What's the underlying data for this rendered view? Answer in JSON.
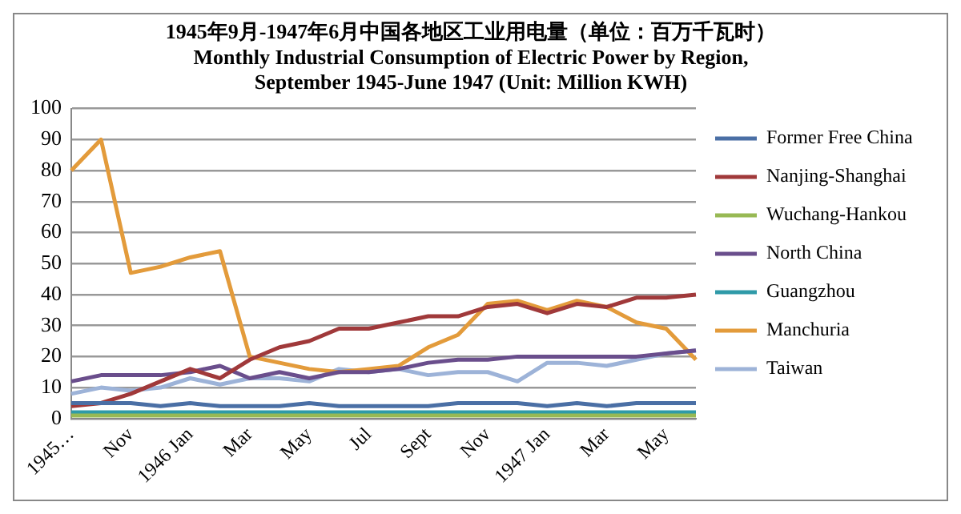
{
  "chart_data": {
    "type": "line",
    "title": "1945年9月-1947年6月中国各地区工业用电量（单位：百万千瓦时）",
    "subtitle": "Monthly Industrial Consumption of Electric Power by Region, September 1945-June 1947 (Unit: Million KWH)",
    "categories": [
      "1945…",
      null,
      "Nov",
      null,
      "1946 Jan",
      null,
      "Mar",
      null,
      "May",
      null,
      "Jul",
      null,
      "Sept",
      null,
      "Nov",
      null,
      "1947 Jan",
      null,
      "Mar",
      null,
      "May",
      null
    ],
    "series": [
      {
        "name": "Former Free China",
        "color": "#4a6fa5",
        "values": [
          5,
          5,
          5,
          4,
          5,
          4,
          4,
          4,
          5,
          4,
          4,
          4,
          4,
          5,
          5,
          5,
          4,
          5,
          4,
          5,
          5,
          5
        ]
      },
      {
        "name": "Nanjing-Shanghai",
        "color": "#a0393a",
        "values": [
          4,
          5,
          8,
          12,
          16,
          13,
          19,
          23,
          25,
          29,
          29,
          31,
          33,
          33,
          36,
          37,
          34,
          37,
          36,
          39,
          39,
          40
        ]
      },
      {
        "name": "Wuchang-Hankou",
        "color": "#98b954",
        "values": [
          1,
          1,
          1,
          1,
          1,
          1,
          1,
          1,
          1,
          1,
          1,
          1,
          1,
          1,
          1,
          1,
          1,
          1,
          1,
          1,
          1,
          1
        ]
      },
      {
        "name": "North China",
        "color": "#6a4e8c",
        "values": [
          12,
          14,
          14,
          14,
          15,
          17,
          13,
          15,
          13,
          15,
          15,
          16,
          18,
          19,
          19,
          20,
          20,
          20,
          20,
          20,
          21,
          22
        ]
      },
      {
        "name": "Guangzhou",
        "color": "#2f9aa8",
        "values": [
          2,
          2,
          2,
          2,
          2,
          2,
          2,
          2,
          2,
          2,
          2,
          2,
          2,
          2,
          2,
          2,
          2,
          2,
          2,
          2,
          2,
          2
        ]
      },
      {
        "name": "Manchuria",
        "color": "#e39b3b",
        "values": [
          80,
          90,
          47,
          49,
          52,
          54,
          20,
          18,
          16,
          15,
          16,
          17,
          23,
          27,
          37,
          38,
          35,
          38,
          36,
          31,
          29,
          19
        ]
      },
      {
        "name": "Taiwan",
        "color": "#9db3d8",
        "values": [
          8,
          10,
          9,
          10,
          13,
          11,
          13,
          13,
          12,
          16,
          15,
          16,
          14,
          15,
          15,
          12,
          18,
          18,
          17,
          19,
          21,
          22
        ]
      }
    ],
    "ylim": [
      0,
      100
    ],
    "yticks": [
      0,
      10,
      20,
      30,
      40,
      50,
      60,
      70,
      80,
      90,
      100
    ],
    "grid": "y",
    "legend": "right",
    "marker": "none",
    "line_style": "solid"
  }
}
